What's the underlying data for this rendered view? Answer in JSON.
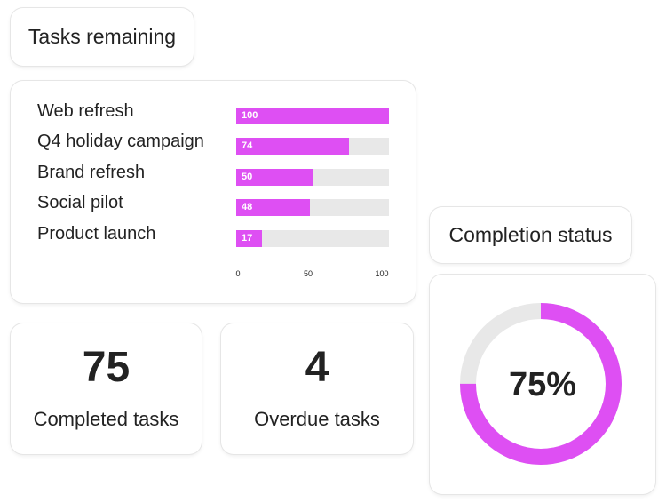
{
  "tasks_remaining": {
    "title": "Tasks remaining"
  },
  "chart_data": {
    "type": "bar",
    "orientation": "horizontal",
    "categories": [
      "Web refresh",
      "Q4 holiday campaign",
      "Brand refresh",
      "Social pilot",
      "Product launch"
    ],
    "values": [
      100,
      74,
      50,
      48,
      17
    ],
    "xlim": [
      0,
      100
    ],
    "xticks": [
      "0",
      "50",
      "100"
    ],
    "bar_color": "#de4ff3",
    "track_color": "#e8e8e8"
  },
  "completed": {
    "value": "75",
    "label": "Completed tasks"
  },
  "overdue": {
    "value": "4",
    "label": "Overdue tasks"
  },
  "completion_status": {
    "title": "Completion status",
    "percent": 75,
    "percent_label": "75%",
    "ring_color": "#de4ff3",
    "track_color": "#e8e8e8"
  }
}
